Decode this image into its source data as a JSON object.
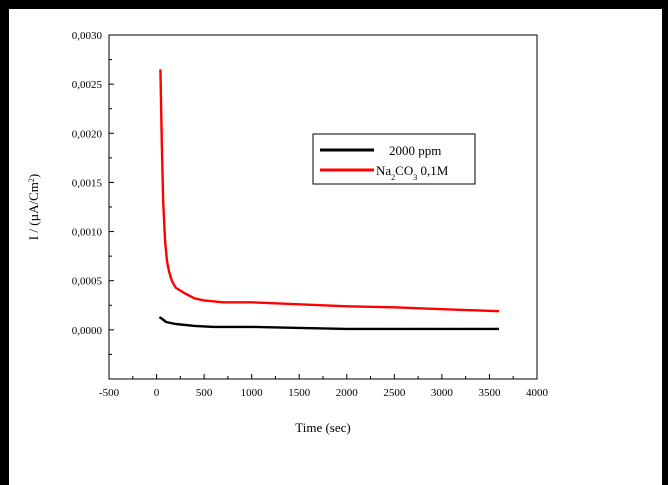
{
  "chart_data": {
    "type": "line",
    "xlabel": "Time (sec)",
    "ylabel": "I / (µA/Cm²)",
    "xlim": [
      -500,
      4000
    ],
    "ylim": [
      -0.0005,
      0.003
    ],
    "x_ticks": [
      "-500",
      "0",
      "500",
      "1000",
      "1500",
      "2000",
      "2500",
      "3000",
      "3500",
      "4000"
    ],
    "y_ticks": [
      "0,0000",
      "0,0005",
      "0,0010",
      "0,0015",
      "0,0020",
      "0,0025",
      "0,0030"
    ],
    "grid": false,
    "legend_position": "upper-right",
    "series": [
      {
        "name": "2000 ppm",
        "color": "#000000",
        "points": [
          [
            30,
            0.00013
          ],
          [
            60,
            0.00011
          ],
          [
            100,
            8e-05
          ],
          [
            150,
            7e-05
          ],
          [
            200,
            6e-05
          ],
          [
            300,
            5e-05
          ],
          [
            400,
            4e-05
          ],
          [
            600,
            3e-05
          ],
          [
            800,
            3e-05
          ],
          [
            1000,
            3e-05
          ],
          [
            1500,
            2e-05
          ],
          [
            2000,
            1e-05
          ],
          [
            2500,
            1e-05
          ],
          [
            3000,
            1e-05
          ],
          [
            3600,
            1e-05
          ]
        ]
      },
      {
        "name": "Na2CO3 0,1M",
        "color": "#ff0000",
        "points": [
          [
            40,
            0.00265
          ],
          [
            55,
            0.0019
          ],
          [
            70,
            0.0013
          ],
          [
            90,
            0.0009
          ],
          [
            110,
            0.0007
          ],
          [
            130,
            0.0006
          ],
          [
            160,
            0.0005
          ],
          [
            200,
            0.00043
          ],
          [
            300,
            0.00037
          ],
          [
            400,
            0.00032
          ],
          [
            500,
            0.0003
          ],
          [
            700,
            0.00028
          ],
          [
            1000,
            0.00028
          ],
          [
            1500,
            0.00026
          ],
          [
            2000,
            0.00024
          ],
          [
            2500,
            0.00023
          ],
          [
            3000,
            0.00021
          ],
          [
            3600,
            0.00019
          ]
        ]
      }
    ]
  },
  "legend_labels": {
    "l1": "2000 ppm",
    "l2_prefix": "Na",
    "l2_sub1": "2",
    "l2_mid": "CO",
    "l2_sub2": "3",
    "l2_suffix": " 0,1M"
  },
  "ylabel_parts": {
    "main": "I / (µA/Cm",
    "sup": "2",
    "close": ")"
  }
}
